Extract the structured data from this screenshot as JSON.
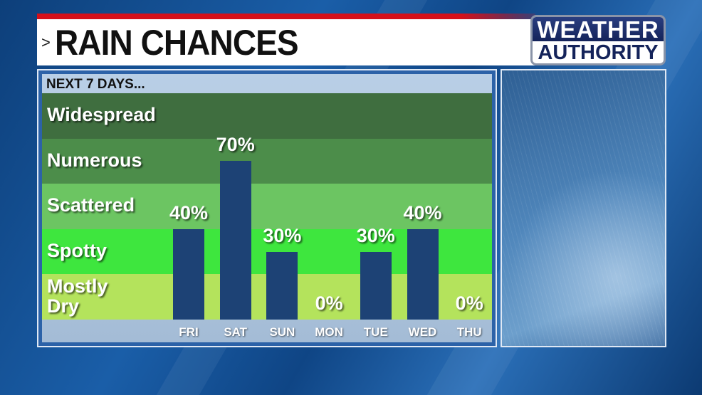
{
  "header": {
    "title": "RAIN CHANCES",
    "chevron": ">"
  },
  "logo": {
    "line1": "WEATHER",
    "line2": "AUTHORITY"
  },
  "colors": {
    "bar": "#1d4275",
    "title_bar_accent": "#d4101a",
    "widespread": "#3f6e3f",
    "numerous": "#4c8d4a",
    "scattered": "#6cc562",
    "spotty": "#3ee63e",
    "mostly_dry": "#b4e35c"
  },
  "chart_data": {
    "type": "bar",
    "title": "NEXT 7 DAYS...",
    "categories": [
      "FRI",
      "SAT",
      "SUN",
      "MON",
      "TUE",
      "WED",
      "THU"
    ],
    "values": [
      40,
      70,
      30,
      0,
      30,
      40,
      0
    ],
    "value_labels": [
      "40%",
      "70%",
      "30%",
      "0%",
      "30%",
      "40%",
      "0%"
    ],
    "ylim": [
      0,
      100
    ],
    "bands": [
      {
        "label": "Widespread",
        "range": [
          80,
          100
        ]
      },
      {
        "label": "Numerous",
        "range": [
          60,
          80
        ]
      },
      {
        "label": "Scattered",
        "range": [
          40,
          60
        ]
      },
      {
        "label": "Spotty",
        "range": [
          20,
          40
        ]
      },
      {
        "label": "Mostly Dry",
        "range": [
          0,
          20
        ]
      }
    ]
  }
}
